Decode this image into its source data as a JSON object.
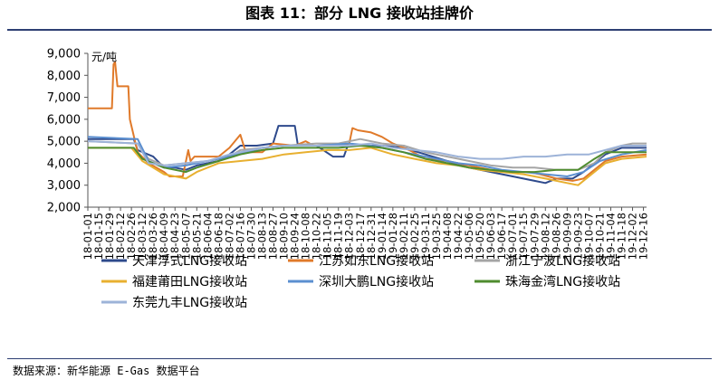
{
  "title": "图表 11：部分 LNG 接收站挂牌价",
  "source": "数据来源：新华能源 E-Gas 数据平台",
  "chart_data": {
    "type": "line",
    "title": "图表 11：部分 LNG 接收站挂牌价",
    "xlabel": "",
    "ylabel": "元/吨",
    "unit_label": "元/吨",
    "ylim": [
      2000,
      9000
    ],
    "yticks": [
      "2,000",
      "3,000",
      "4,000",
      "5,000",
      "6,000",
      "7,000",
      "8,000",
      "9,000"
    ],
    "ytick_values": [
      2000,
      3000,
      4000,
      5000,
      6000,
      7000,
      8000,
      9000
    ],
    "xlim": [
      "2018-01-01",
      "2019-12-20"
    ],
    "xticks": [
      "18-01-01",
      "18-01-15",
      "18-01-29",
      "18-02-12",
      "18-02-26",
      "18-03-12",
      "18-03-26",
      "18-04-09",
      "18-04-23",
      "18-05-07",
      "18-05-21",
      "18-06-04",
      "18-06-18",
      "18-07-02",
      "18-07-16",
      "18-07-30",
      "18-08-13",
      "18-08-27",
      "18-09-10",
      "18-09-24",
      "18-10-08",
      "18-10-22",
      "18-11-05",
      "18-11-19",
      "18-12-03",
      "18-12-17",
      "18-12-31",
      "19-01-14",
      "19-01-28",
      "19-02-11",
      "19-02-25",
      "19-03-11",
      "19-03-25",
      "19-04-08",
      "19-04-22",
      "19-05-06",
      "19-05-20",
      "19-06-03",
      "19-06-17",
      "19-07-01",
      "19-07-15",
      "19-07-29",
      "19-08-12",
      "19-08-26",
      "19-09-09",
      "19-09-23",
      "19-10-07",
      "19-10-21",
      "19-11-04",
      "19-11-18",
      "19-12-02",
      "19-12-16"
    ],
    "xtick_dates": [
      "2018-01-01",
      "2018-01-15",
      "2018-01-29",
      "2018-02-12",
      "2018-02-26",
      "2018-03-12",
      "2018-03-26",
      "2018-04-09",
      "2018-04-23",
      "2018-05-07",
      "2018-05-21",
      "2018-06-04",
      "2018-06-18",
      "2018-07-02",
      "2018-07-16",
      "2018-07-30",
      "2018-08-13",
      "2018-08-27",
      "2018-09-10",
      "2018-09-24",
      "2018-10-08",
      "2018-10-22",
      "2018-11-05",
      "2018-11-19",
      "2018-12-03",
      "2018-12-17",
      "2018-12-31",
      "2019-01-14",
      "2019-01-28",
      "2019-02-11",
      "2019-02-25",
      "2019-03-11",
      "2019-03-25",
      "2019-04-08",
      "2019-04-22",
      "2019-05-06",
      "2019-05-20",
      "2019-06-03",
      "2019-06-17",
      "2019-07-01",
      "2019-07-15",
      "2019-07-29",
      "2019-08-12",
      "2019-08-26",
      "2019-09-09",
      "2019-09-23",
      "2019-10-07",
      "2019-10-21",
      "2019-11-04",
      "2019-11-18",
      "2019-12-02",
      "2019-12-16"
    ],
    "grid": false,
    "legend_position": "bottom",
    "series": [
      {
        "name": "天津浮式LNG接收站",
        "color": "#2e4a8c",
        "points": [
          [
            "2018-01-01",
            5100
          ],
          [
            "2018-03-01",
            5100
          ],
          [
            "2018-03-06",
            4600
          ],
          [
            "2018-03-26",
            4300
          ],
          [
            "2018-04-09",
            3800
          ],
          [
            "2018-04-23",
            3800
          ],
          [
            "2018-05-07",
            3700
          ],
          [
            "2018-05-21",
            3900
          ],
          [
            "2018-06-18",
            4100
          ],
          [
            "2018-07-02",
            4400
          ],
          [
            "2018-07-16",
            4800
          ],
          [
            "2018-08-06",
            4800
          ],
          [
            "2018-08-27",
            4900
          ],
          [
            "2018-09-03",
            5700
          ],
          [
            "2018-09-24",
            5700
          ],
          [
            "2018-09-28",
            4800
          ],
          [
            "2018-10-22",
            4800
          ],
          [
            "2018-11-12",
            4300
          ],
          [
            "2018-11-26",
            4300
          ],
          [
            "2018-12-01",
            4800
          ],
          [
            "2019-01-14",
            4800
          ],
          [
            "2019-02-11",
            4700
          ],
          [
            "2019-03-11",
            4400
          ],
          [
            "2019-04-08",
            4100
          ],
          [
            "2019-05-06",
            3800
          ],
          [
            "2019-06-03",
            3600
          ],
          [
            "2019-07-01",
            3400
          ],
          [
            "2019-07-29",
            3200
          ],
          [
            "2019-08-12",
            3100
          ],
          [
            "2019-08-26",
            3300
          ],
          [
            "2019-09-16",
            3300
          ],
          [
            "2019-09-30",
            3600
          ],
          [
            "2019-10-14",
            4000
          ],
          [
            "2019-10-28",
            4400
          ],
          [
            "2019-11-18",
            4700
          ],
          [
            "2019-12-20",
            4700
          ]
        ]
      },
      {
        "name": "江苏如东LNG接收站",
        "color": "#e07a2a",
        "points": [
          [
            "2018-01-01",
            6500
          ],
          [
            "2018-02-01",
            6500
          ],
          [
            "2018-02-03",
            8500
          ],
          [
            "2018-02-05",
            8600
          ],
          [
            "2018-02-08",
            7500
          ],
          [
            "2018-02-22",
            7500
          ],
          [
            "2018-02-24",
            6000
          ],
          [
            "2018-03-06",
            4500
          ],
          [
            "2018-03-20",
            4000
          ],
          [
            "2018-04-09",
            3600
          ],
          [
            "2018-04-16",
            3400
          ],
          [
            "2018-05-03",
            3400
          ],
          [
            "2018-05-10",
            4600
          ],
          [
            "2018-05-13",
            4100
          ],
          [
            "2018-05-18",
            4300
          ],
          [
            "2018-06-18",
            4300
          ],
          [
            "2018-07-02",
            4700
          ],
          [
            "2018-07-16",
            5300
          ],
          [
            "2018-07-23",
            4500
          ],
          [
            "2018-08-13",
            4500
          ],
          [
            "2018-08-27",
            4900
          ],
          [
            "2018-09-24",
            4800
          ],
          [
            "2018-10-08",
            5000
          ],
          [
            "2018-10-18",
            4800
          ],
          [
            "2018-11-19",
            4800
          ],
          [
            "2018-12-03",
            4900
          ],
          [
            "2018-12-07",
            5600
          ],
          [
            "2018-12-14",
            5500
          ],
          [
            "2018-12-31",
            5400
          ],
          [
            "2019-01-14",
            5200
          ],
          [
            "2019-01-28",
            4900
          ],
          [
            "2019-02-18",
            4600
          ],
          [
            "2019-03-11",
            4200
          ],
          [
            "2019-04-08",
            4100
          ],
          [
            "2019-05-06",
            3900
          ],
          [
            "2019-06-03",
            3700
          ],
          [
            "2019-07-01",
            3600
          ],
          [
            "2019-07-22",
            3600
          ],
          [
            "2019-08-05",
            3500
          ],
          [
            "2019-08-26",
            3300
          ],
          [
            "2019-09-16",
            3200
          ],
          [
            "2019-09-30",
            3300
          ],
          [
            "2019-10-14",
            3700
          ],
          [
            "2019-10-28",
            4100
          ],
          [
            "2019-11-18",
            4300
          ],
          [
            "2019-12-20",
            4400
          ]
        ]
      },
      {
        "name": "浙江宁波LNG接收站",
        "color": "#a5a5a5",
        "points": [
          [
            "2018-01-01",
            5000
          ],
          [
            "2018-03-06",
            4900
          ],
          [
            "2018-03-20",
            4200
          ],
          [
            "2018-04-09",
            3900
          ],
          [
            "2018-05-07",
            4000
          ],
          [
            "2018-06-04",
            4100
          ],
          [
            "2018-07-02",
            4300
          ],
          [
            "2018-07-16",
            4600
          ],
          [
            "2018-08-13",
            4700
          ],
          [
            "2018-09-10",
            4800
          ],
          [
            "2018-10-22",
            4900
          ],
          [
            "2018-11-19",
            4900
          ],
          [
            "2018-12-17",
            5100
          ],
          [
            "2019-01-14",
            4900
          ],
          [
            "2019-02-11",
            4800
          ],
          [
            "2019-03-11",
            4500
          ],
          [
            "2019-04-08",
            4300
          ],
          [
            "2019-05-06",
            4100
          ],
          [
            "2019-06-03",
            3900
          ],
          [
            "2019-07-01",
            3800
          ],
          [
            "2019-07-29",
            3800
          ],
          [
            "2019-08-26",
            3700
          ],
          [
            "2019-09-23",
            3700
          ],
          [
            "2019-10-14",
            4000
          ],
          [
            "2019-10-28",
            4500
          ],
          [
            "2019-11-18",
            4800
          ],
          [
            "2019-12-02",
            4900
          ],
          [
            "2019-12-20",
            4900
          ]
        ]
      },
      {
        "name": "福建莆田LNG接收站",
        "color": "#e8b030",
        "points": [
          [
            "2018-01-01",
            4700
          ],
          [
            "2018-02-26",
            4700
          ],
          [
            "2018-03-12",
            4100
          ],
          [
            "2018-04-09",
            3500
          ],
          [
            "2018-05-07",
            3300
          ],
          [
            "2018-05-21",
            3600
          ],
          [
            "2018-06-18",
            4000
          ],
          [
            "2018-07-16",
            4100
          ],
          [
            "2018-08-13",
            4200
          ],
          [
            "2018-09-10",
            4400
          ],
          [
            "2018-10-08",
            4500
          ],
          [
            "2018-11-05",
            4600
          ],
          [
            "2018-12-03",
            4600
          ],
          [
            "2018-12-31",
            4700
          ],
          [
            "2019-01-28",
            4400
          ],
          [
            "2019-02-25",
            4200
          ],
          [
            "2019-03-25",
            4000
          ],
          [
            "2019-04-22",
            3900
          ],
          [
            "2019-05-20",
            3700
          ],
          [
            "2019-06-17",
            3600
          ],
          [
            "2019-07-15",
            3500
          ],
          [
            "2019-08-12",
            3300
          ],
          [
            "2019-09-09",
            3100
          ],
          [
            "2019-09-23",
            3000
          ],
          [
            "2019-10-07",
            3400
          ],
          [
            "2019-10-28",
            4000
          ],
          [
            "2019-11-18",
            4200
          ],
          [
            "2019-12-20",
            4300
          ]
        ]
      },
      {
        "name": "深圳大鹏LNG接收站",
        "color": "#5b8fd0",
        "points": [
          [
            "2018-01-01",
            5200
          ],
          [
            "2018-03-06",
            5100
          ],
          [
            "2018-03-20",
            4100
          ],
          [
            "2018-04-09",
            3800
          ],
          [
            "2018-05-07",
            3900
          ],
          [
            "2018-06-04",
            4100
          ],
          [
            "2018-07-02",
            4300
          ],
          [
            "2018-08-13",
            4700
          ],
          [
            "2018-09-10",
            4800
          ],
          [
            "2018-10-22",
            4800
          ],
          [
            "2018-12-03",
            4900
          ],
          [
            "2018-12-31",
            4800
          ],
          [
            "2019-01-28",
            4600
          ],
          [
            "2019-02-25",
            4400
          ],
          [
            "2019-03-25",
            4200
          ],
          [
            "2019-04-22",
            4000
          ],
          [
            "2019-05-20",
            3900
          ],
          [
            "2019-06-17",
            3700
          ],
          [
            "2019-07-15",
            3600
          ],
          [
            "2019-08-12",
            3500
          ],
          [
            "2019-09-09",
            3400
          ],
          [
            "2019-09-30",
            3600
          ],
          [
            "2019-10-21",
            4100
          ],
          [
            "2019-11-18",
            4400
          ],
          [
            "2019-12-20",
            4600
          ]
        ]
      },
      {
        "name": "珠海金湾LNG接收站",
        "color": "#4f8c2f",
        "points": [
          [
            "2018-01-01",
            4700
          ],
          [
            "2018-03-01",
            4700
          ],
          [
            "2018-03-12",
            4200
          ],
          [
            "2018-04-09",
            3800
          ],
          [
            "2018-05-07",
            3600
          ],
          [
            "2018-05-21",
            3800
          ],
          [
            "2018-06-18",
            4100
          ],
          [
            "2018-07-16",
            4400
          ],
          [
            "2018-08-13",
            4600
          ],
          [
            "2018-09-10",
            4700
          ],
          [
            "2018-10-22",
            4700
          ],
          [
            "2018-11-19",
            4700
          ],
          [
            "2018-12-17",
            4800
          ],
          [
            "2019-01-14",
            4700
          ],
          [
            "2019-02-11",
            4500
          ],
          [
            "2019-03-11",
            4200
          ],
          [
            "2019-04-08",
            4000
          ],
          [
            "2019-05-06",
            3800
          ],
          [
            "2019-06-03",
            3700
          ],
          [
            "2019-07-01",
            3600
          ],
          [
            "2019-07-29",
            3600
          ],
          [
            "2019-08-26",
            3700
          ],
          [
            "2019-09-23",
            3700
          ],
          [
            "2019-10-14",
            4200
          ],
          [
            "2019-10-28",
            4500
          ],
          [
            "2019-11-18",
            4500
          ],
          [
            "2019-12-20",
            4500
          ]
        ]
      },
      {
        "name": "东莞九丰LNG接收站",
        "color": "#9db3d8",
        "points": [
          [
            "2018-01-01",
            5000
          ],
          [
            "2018-03-06",
            4900
          ],
          [
            "2018-03-20",
            4000
          ],
          [
            "2018-04-09",
            3900
          ],
          [
            "2018-05-07",
            4000
          ],
          [
            "2018-06-04",
            4100
          ],
          [
            "2018-07-02",
            4400
          ],
          [
            "2018-08-13",
            4700
          ],
          [
            "2018-09-10",
            4800
          ],
          [
            "2018-10-22",
            4800
          ],
          [
            "2018-12-03",
            4800
          ],
          [
            "2018-12-31",
            4900
          ],
          [
            "2019-01-28",
            4700
          ],
          [
            "2019-02-25",
            4600
          ],
          [
            "2019-03-25",
            4500
          ],
          [
            "2019-04-22",
            4300
          ],
          [
            "2019-05-20",
            4200
          ],
          [
            "2019-06-17",
            4200
          ],
          [
            "2019-07-15",
            4300
          ],
          [
            "2019-08-12",
            4300
          ],
          [
            "2019-09-09",
            4400
          ],
          [
            "2019-10-07",
            4400
          ],
          [
            "2019-10-28",
            4600
          ],
          [
            "2019-11-18",
            4800
          ],
          [
            "2019-12-20",
            4800
          ]
        ]
      }
    ]
  }
}
